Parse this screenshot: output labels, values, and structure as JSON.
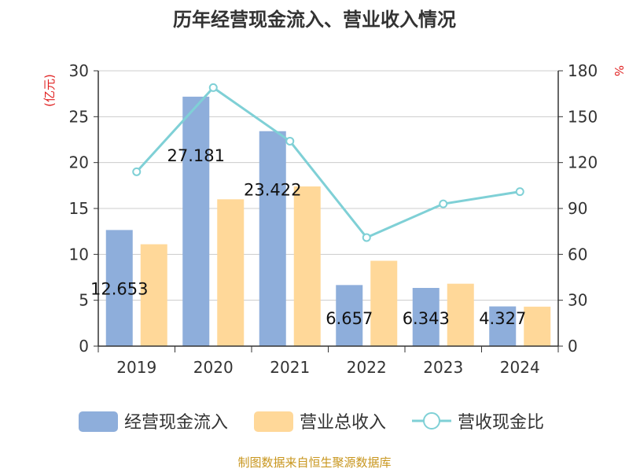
{
  "chart_data": {
    "type": "bar",
    "title": "历年经营现金流入、营业收入情况",
    "categories": [
      "2019",
      "2020",
      "2021",
      "2022",
      "2023",
      "2024"
    ],
    "series": [
      {
        "name": "经营现金流入",
        "type": "bar",
        "axis": "left",
        "color": "#8eaedb",
        "values": [
          12.653,
          27.181,
          23.422,
          6.657,
          6.343,
          4.327
        ],
        "labels": [
          "12.653",
          "27.181",
          "23.422",
          "6.657",
          "6.343",
          "4.327"
        ]
      },
      {
        "name": "营业总收入",
        "type": "bar",
        "axis": "left",
        "color": "#ffd899",
        "values": [
          11.1,
          16.0,
          17.4,
          9.3,
          6.8,
          4.3
        ]
      },
      {
        "name": "营收现金比",
        "type": "line",
        "axis": "right",
        "color": "#7fd0d6",
        "values": [
          114,
          169,
          134,
          71,
          93,
          101
        ]
      }
    ],
    "left_axis": {
      "label": "(亿元)",
      "ylim": [
        0,
        30
      ],
      "ticks": [
        "0",
        "5",
        "10",
        "15",
        "20",
        "25",
        "30"
      ]
    },
    "right_axis": {
      "label": "%",
      "ylim": [
        0,
        180
      ],
      "ticks": [
        "0",
        "30",
        "60",
        "90",
        "120",
        "150",
        "180"
      ]
    },
    "grid": true,
    "legend_position": "bottom",
    "source": "制图数据来自恒生聚源数据库",
    "source_color": "#c8961e",
    "axis_label_color": "#e02020"
  }
}
